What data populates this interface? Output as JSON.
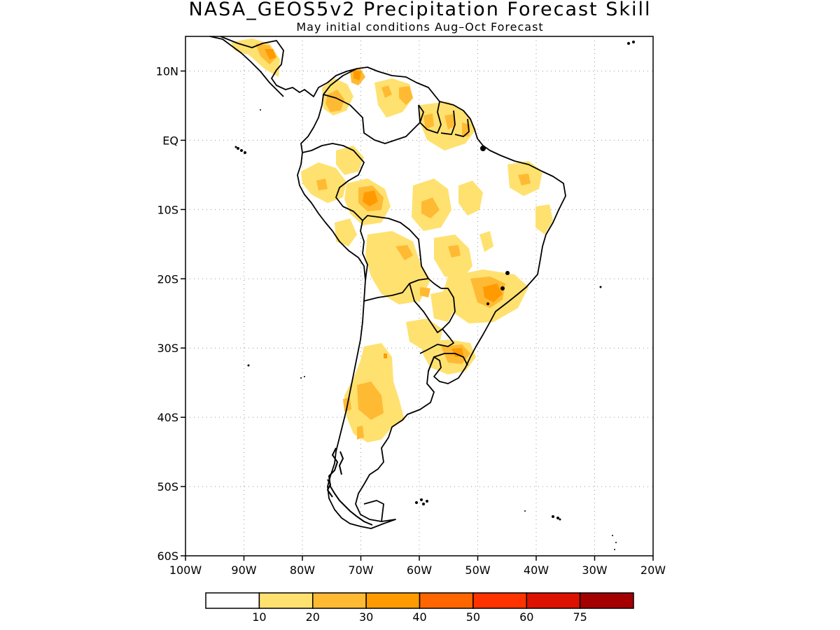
{
  "title": "NASA_GEOS5v2 Precipitation Forecast Skill",
  "subtitle": "May initial conditions  Aug–Oct Forecast",
  "map": {
    "lon_range": [
      -100,
      -20
    ],
    "lat_range": [
      -60,
      15
    ],
    "lat_ticks": [
      {
        "value": 10,
        "label": "10N"
      },
      {
        "value": 0,
        "label": "EQ"
      },
      {
        "value": -10,
        "label": "10S"
      },
      {
        "value": -20,
        "label": "20S"
      },
      {
        "value": -30,
        "label": "30S"
      },
      {
        "value": -40,
        "label": "40S"
      },
      {
        "value": -50,
        "label": "50S"
      },
      {
        "value": -60,
        "label": "60S"
      }
    ],
    "lon_ticks": [
      {
        "value": -100,
        "label": "100W"
      },
      {
        "value": -90,
        "label": "90W"
      },
      {
        "value": -80,
        "label": "80W"
      },
      {
        "value": -70,
        "label": "70W"
      },
      {
        "value": -60,
        "label": "60W"
      },
      {
        "value": -50,
        "label": "50W"
      },
      {
        "value": -40,
        "label": "40W"
      },
      {
        "value": -30,
        "label": "30W"
      },
      {
        "value": -20,
        "label": "20W"
      }
    ],
    "grid": "dotted"
  },
  "colorbar": {
    "colors": [
      "#ffffff",
      "#ffe170",
      "#ffba33",
      "#ff9b00",
      "#ff6600",
      "#ff3300",
      "#dd1100",
      "#a50000"
    ],
    "labels": [
      "10",
      "20",
      "30",
      "40",
      "50",
      "60",
      "75"
    ]
  },
  "colors": {
    "continent_outline": "#000000",
    "skill_10_20": "#ffe170",
    "skill_20_30": "#ffba33",
    "skill_30_40": "#ff9b00"
  }
}
